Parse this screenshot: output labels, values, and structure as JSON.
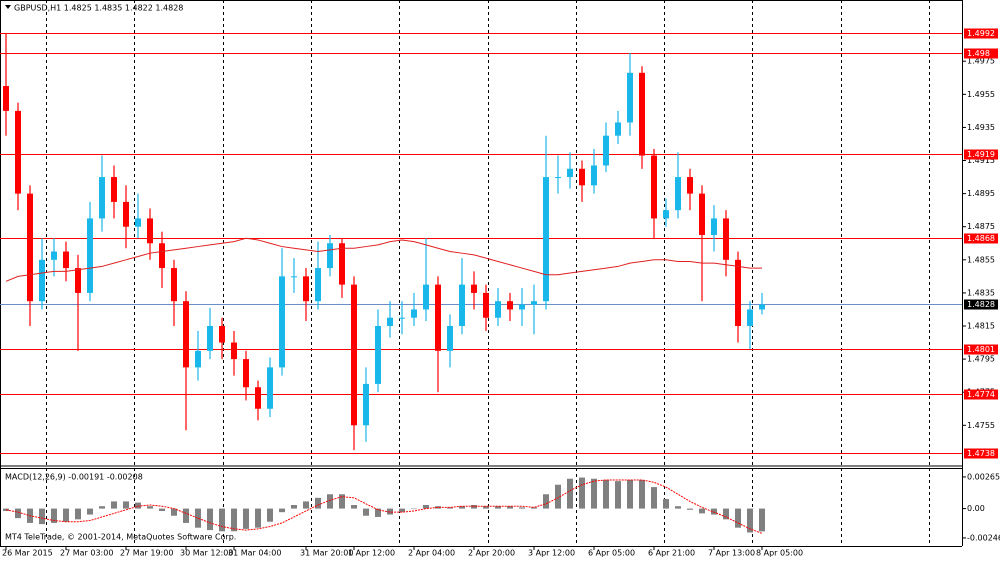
{
  "chart_data": [
    {
      "type": "candlestick",
      "title": "GBPUSD,H1  1.4825 1.4835 1.4822 1.4828",
      "categories": [
        "26 Mar 2015",
        null,
        null,
        null,
        null,
        "27 Mar 03:00",
        null,
        null,
        null,
        null,
        "27 Mar 19:00",
        null,
        null,
        null,
        null,
        "30 Mar 12:00",
        null,
        null,
        null,
        "31 Mar 04:00",
        null,
        null,
        null,
        null,
        null,
        "31 Mar 20:00",
        null,
        null,
        null,
        "1 Apr 12:00",
        null,
        null,
        null,
        null,
        "2 Apr 04:00",
        null,
        null,
        null,
        null,
        "2 Apr 20:00",
        null,
        null,
        null,
        null,
        "3 Apr 12:00",
        null,
        null,
        null,
        null,
        "6 Apr 05:00",
        null,
        null,
        null,
        null,
        "6 Apr 21:00",
        null,
        null,
        null,
        null,
        "7 Apr 13:00",
        null,
        null,
        null,
        "8 Apr 05:00"
      ],
      "open": [
        1.496,
        1.4945,
        1.4895,
        1.483,
        1.4855,
        1.486,
        1.485,
        1.4835,
        1.488,
        1.4905,
        1.489,
        1.4875,
        1.488,
        1.4865,
        1.485,
        1.483,
        1.479,
        1.48,
        1.4815,
        1.4805,
        1.4795,
        1.4778,
        1.4765,
        1.479,
        1.4845,
        1.4845,
        1.483,
        1.485,
        1.4865,
        1.484,
        1.4755,
        1.478,
        1.4815,
        1.482,
        1.482,
        1.4825,
        1.484,
        1.48,
        1.4815,
        1.484,
        1.4835,
        1.482,
        1.483,
        1.4825,
        1.4828,
        1.483,
        1.4905,
        1.4905,
        1.491,
        1.49,
        1.4912,
        1.493,
        1.4938,
        1.4968,
        1.4918,
        1.488,
        1.4885,
        1.4905,
        1.4895,
        1.487,
        1.488,
        1.4855,
        1.4815,
        1.4825
      ],
      "high": [
        1.4992,
        1.495,
        1.49,
        1.4868,
        1.4868,
        1.4866,
        1.4858,
        1.489,
        1.4918,
        1.4912,
        1.49,
        1.4895,
        1.4886,
        1.4872,
        1.4855,
        1.4836,
        1.4812,
        1.4826,
        1.482,
        1.4812,
        1.48,
        1.4782,
        1.4796,
        1.4862,
        1.4856,
        1.485,
        1.4866,
        1.487,
        1.4868,
        1.4845,
        1.479,
        1.4825,
        1.483,
        1.483,
        1.4835,
        1.4868,
        1.4845,
        1.4822,
        1.4856,
        1.4848,
        1.484,
        1.4838,
        1.4835,
        1.4838,
        1.484,
        1.493,
        1.4918,
        1.492,
        1.4915,
        1.4922,
        1.4938,
        1.4945,
        1.498,
        1.4972,
        1.4922,
        1.4892,
        1.492,
        1.491,
        1.49,
        1.4888,
        1.4885,
        1.486,
        1.483,
        1.4835
      ],
      "low": [
        1.493,
        1.4885,
        1.4815,
        1.4825,
        1.4845,
        1.4842,
        1.48,
        1.483,
        1.4872,
        1.488,
        1.4862,
        1.4868,
        1.4855,
        1.4838,
        1.4815,
        1.4752,
        1.4782,
        1.4795,
        1.4795,
        1.4785,
        1.477,
        1.4758,
        1.476,
        1.4785,
        1.4835,
        1.4818,
        1.4825,
        1.4845,
        1.4832,
        1.474,
        1.4745,
        1.4775,
        1.4808,
        1.481,
        1.4815,
        1.4818,
        1.4775,
        1.479,
        1.481,
        1.4825,
        1.4812,
        1.4815,
        1.4818,
        1.4815,
        1.481,
        1.4825,
        1.4895,
        1.4898,
        1.489,
        1.4895,
        1.4908,
        1.4925,
        1.493,
        1.491,
        1.4868,
        1.4875,
        1.488,
        1.4885,
        1.483,
        1.486,
        1.4845,
        1.4805,
        1.4801,
        1.4822
      ],
      "close": [
        1.4945,
        1.4895,
        1.483,
        1.4855,
        1.486,
        1.485,
        1.4835,
        1.488,
        1.4905,
        1.489,
        1.4875,
        1.488,
        1.4865,
        1.485,
        1.483,
        1.479,
        1.48,
        1.4815,
        1.4805,
        1.4795,
        1.4778,
        1.4765,
        1.479,
        1.4845,
        1.4845,
        1.483,
        1.485,
        1.4865,
        1.484,
        1.4755,
        1.478,
        1.4815,
        1.482,
        1.482,
        1.4825,
        1.484,
        1.48,
        1.4815,
        1.484,
        1.4835,
        1.482,
        1.483,
        1.4825,
        1.4828,
        1.483,
        1.4905,
        1.4905,
        1.491,
        1.49,
        1.4912,
        1.493,
        1.4938,
        1.4968,
        1.4918,
        1.488,
        1.4885,
        1.4905,
        1.4895,
        1.487,
        1.488,
        1.4855,
        1.4815,
        1.4825,
        1.4828
      ],
      "up_color": "#1ab7ea",
      "down_color": "#ff0000",
      "series": [
        {
          "color": "#e02020",
          "values": [
            1.4842,
            1.4845,
            1.4846,
            1.4847,
            1.4848,
            1.4848,
            1.4849,
            1.485,
            1.4851,
            1.4853,
            1.4855,
            1.4857,
            1.4859,
            1.486,
            1.4861,
            1.4862,
            1.4863,
            1.4864,
            1.4865,
            1.4866,
            1.4868,
            1.4867,
            1.4865,
            1.4863,
            1.4862,
            1.4861,
            1.486,
            1.4861,
            1.4862,
            1.4862,
            1.4863,
            1.4864,
            1.4866,
            1.4867,
            1.4866,
            1.4864,
            1.4862,
            1.486,
            1.4859,
            1.4858,
            1.4856,
            1.4854,
            1.4852,
            1.485,
            1.4848,
            1.4846,
            1.4846,
            1.4847,
            1.4848,
            1.4849,
            1.485,
            1.4851,
            1.4853,
            1.4854,
            1.4855,
            1.4855,
            1.4854,
            1.4854,
            1.4853,
            1.4853,
            1.4852,
            1.4851,
            1.485,
            1.485
          ]
        }
      ],
      "levels": [
        1.4992,
        1.498,
        1.4919,
        1.4868,
        1.4801,
        1.4774,
        1.4738
      ],
      "level_color": "#ff0000",
      "bid": 1.4828,
      "bid_color": "#6a8fc7",
      "ylim": [
        1.4731,
        1.5012
      ],
      "yticks": [
        1.4975,
        1.4955,
        1.4935,
        1.4915,
        1.4895,
        1.4875,
        1.4855,
        1.4835,
        1.4815,
        1.4795,
        1.4775,
        1.4755
      ]
    },
    {
      "type": "macd",
      "title": "MACD(12,26,9) -0.00191 -0.00208",
      "series": [
        {
          "color": "#808080",
          "values": [
            -0.0002,
            -0.0008,
            -0.0012,
            -0.0013,
            -0.0012,
            -0.0011,
            -0.0009,
            -0.0005,
            0.0002,
            0.0006,
            0.0006,
            0.0005,
            0.0002,
            -0.0002,
            -0.0006,
            -0.0012,
            -0.0016,
            -0.0018,
            -0.0019,
            -0.0019,
            -0.0017,
            -0.0016,
            -0.0011,
            -0.0003,
            0.0003,
            0.0006,
            0.0009,
            0.0012,
            0.0012,
            0.0003,
            -0.0006,
            -0.0007,
            -0.0005,
            -0.0003,
            0.0,
            0.0003,
            0.0002,
            0.0001,
            0.0002,
            0.0003,
            0.0002,
            0.0002,
            0.0002,
            0.0001,
            0.0001,
            0.0012,
            0.002,
            0.0025,
            0.0026,
            0.0025,
            0.0024,
            0.0023,
            0.0024,
            0.0024,
            0.0018,
            0.0008,
            0.0002,
            -0.0001,
            -0.0004,
            -0.0005,
            -0.0009,
            -0.0016,
            -0.002,
            -0.00191
          ]
        },
        {
          "color": "#ff0000",
          "values": [
            -0.0001,
            -0.0003,
            -0.0006,
            -0.0008,
            -0.001,
            -0.0011,
            -0.0011,
            -0.001,
            -0.0007,
            -0.0004,
            -0.0001,
            0.0002,
            0.0003,
            0.0002,
            0.0,
            -0.0004,
            -0.0008,
            -0.0012,
            -0.0015,
            -0.0017,
            -0.0018,
            -0.0017,
            -0.0015,
            -0.0012,
            -0.0007,
            -0.0002,
            0.0003,
            0.0007,
            0.001,
            0.0009,
            0.0004,
            -0.0001,
            -0.0003,
            -0.0003,
            -0.0002,
            0.0,
            0.0001,
            0.0001,
            0.0002,
            0.0002,
            0.0002,
            0.0002,
            0.0002,
            0.0002,
            0.0001,
            0.0004,
            0.0009,
            0.0015,
            0.002,
            0.0023,
            0.0024,
            0.0024,
            0.0024,
            0.0024,
            0.0022,
            0.0018,
            0.0012,
            0.0006,
            0.0001,
            -0.0003,
            -0.0007,
            -0.0012,
            -0.0017,
            -0.00208
          ]
        }
      ],
      "ylim": [
        -0.00305,
        0.0034
      ],
      "yticks": [
        0.00265,
        {
          "value": 0,
          "label": "0.00"
        },
        -0.00246
      ]
    }
  ],
  "footer": "MT4 TeleTrade, © 2001-2014, MetaQuotes Software Corp."
}
